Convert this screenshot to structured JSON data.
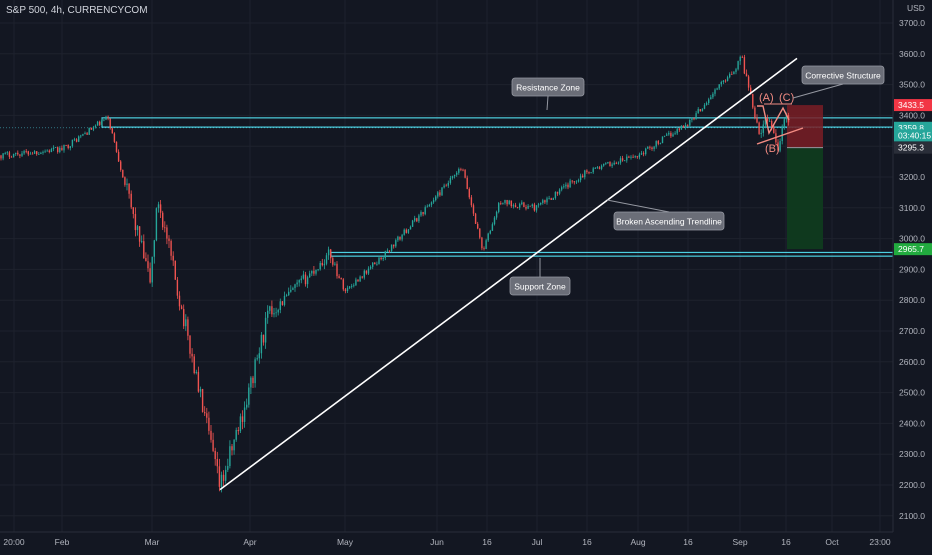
{
  "header": {
    "symbol_title": "S&P 500, 4h, CURRENCYCOM"
  },
  "colors": {
    "background": "#131722",
    "up_candle": "#26a69a",
    "down_candle": "#ef5350",
    "zone_line": "#4dd0e1",
    "trendline": "#ffffff",
    "wave_label": "#f28b82",
    "stop_zone": "#7a1d24",
    "target_zone": "#0f3b1f",
    "callout_bg": "#6b6e78"
  },
  "chart_data": {
    "type": "candlestick",
    "timeframe": "4h",
    "ylabel": "USD",
    "ylim": [
      2060,
      3780
    ],
    "y_ticks": [
      2100,
      2200,
      2300,
      2400,
      2500,
      2600,
      2700,
      2800,
      2900,
      3000,
      3100,
      3200,
      3300,
      3400,
      3500,
      3600,
      3700
    ],
    "x_ticks": [
      "20:00",
      "Feb",
      "Mar",
      "Apr",
      "May",
      "Jun",
      "16",
      "Jul",
      "16",
      "Aug",
      "16",
      "Sep",
      "16",
      "Oct",
      "23:00"
    ],
    "price_path": [
      {
        "t": "20:00",
        "price": 3270
      },
      {
        "t": "Feb",
        "price": 3290
      },
      {
        "t": "Feb 19",
        "price": 3393
      },
      {
        "t": "Feb 28",
        "price": 2860
      },
      {
        "t": "Mar 5",
        "price": 3130
      },
      {
        "t": "Mar 23",
        "price": 2190
      },
      {
        "t": "Apr",
        "price": 2490
      },
      {
        "t": "Apr 8",
        "price": 2750
      },
      {
        "t": "Apr 29",
        "price": 2950
      },
      {
        "t": "May",
        "price": 2830
      },
      {
        "t": "May 18",
        "price": 2950
      },
      {
        "t": "Jun 8",
        "price": 3230
      },
      {
        "t": "Jun 11",
        "price": 2960
      },
      {
        "t": "Jun 16",
        "price": 3120
      },
      {
        "t": "Jul",
        "price": 3100
      },
      {
        "t": "Jul 16",
        "price": 3220
      },
      {
        "t": "Aug",
        "price": 3270
      },
      {
        "t": "Aug 16",
        "price": 3380
      },
      {
        "t": "Sep 2",
        "price": 3585
      },
      {
        "t": "Sep 8",
        "price": 3340
      },
      {
        "t": "Sep 10",
        "price": 3400
      },
      {
        "t": "Sep 14",
        "price": 3300
      },
      {
        "t": "Sep 18",
        "price": 3410
      },
      {
        "t": "Sep 20",
        "price": 3359.8
      }
    ],
    "price_tags": [
      {
        "value": 3433.5,
        "label": "3433.5",
        "color": "#f23645"
      },
      {
        "value": 3359.8,
        "label": "3359.8",
        "color": "#26a69a"
      },
      {
        "value": 3335,
        "label": "03:40:15",
        "color": "#26a69a"
      },
      {
        "value": 3295.3,
        "label": "3295.3",
        "color": "#2a2e39"
      },
      {
        "value": 2965.7,
        "label": "2965.7",
        "color": "#22ab3f"
      }
    ],
    "zones": {
      "resistance": [
        3362,
        3392
      ],
      "support": [
        2943,
        2955
      ],
      "current_line": 3359.8
    },
    "trendline": {
      "from": {
        "t": "Mar 23",
        "price": 2185
      },
      "to": {
        "t": "Sep 22",
        "price": 3585
      }
    },
    "position": {
      "entry": 3295.3,
      "stop": 3433.5,
      "target": 2965.7
    },
    "wave_labels": [
      "(A)",
      "(B)",
      "(C)"
    ],
    "annotations": [
      "Resistance Zone",
      "Corrective Structure",
      "Broken Ascending Trendline",
      "Support Zone"
    ]
  }
}
